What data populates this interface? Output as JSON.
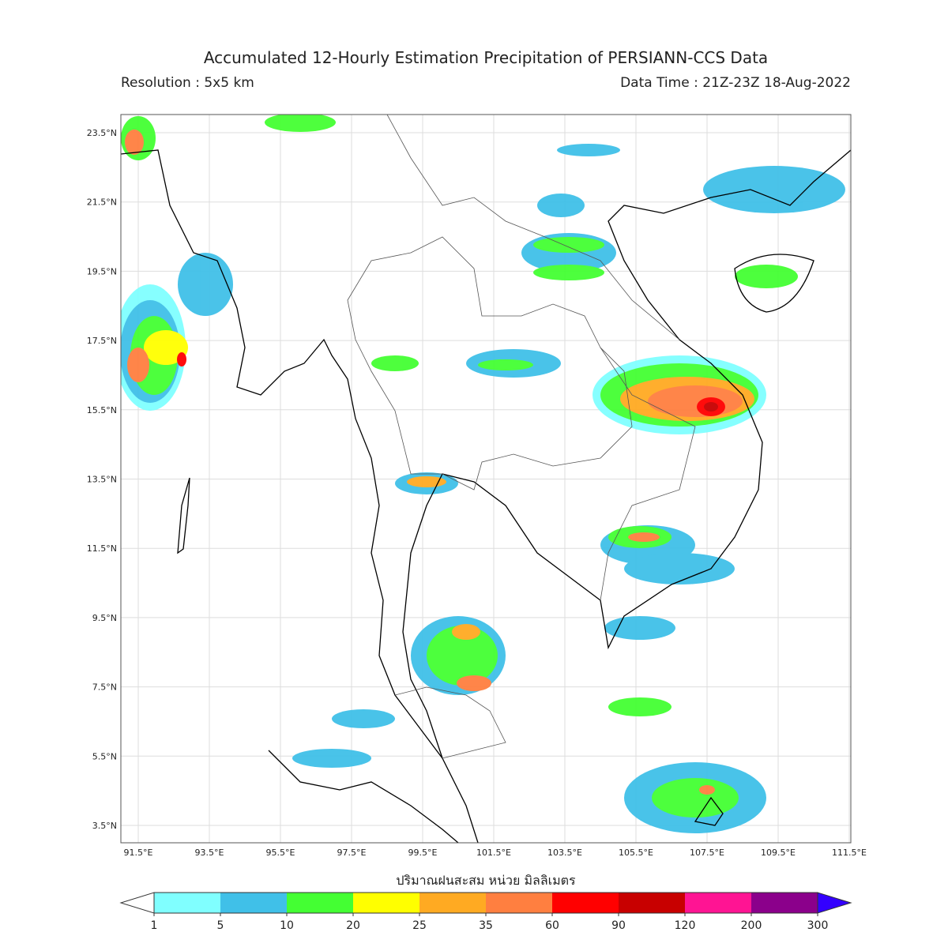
{
  "header": {
    "title": "Accumulated 12-Hourly Estimation Precipitation of PERSIANN-CCS Data",
    "resolution": "Resolution : 5x5 km",
    "data_time": "Data Time : 21Z-23Z 18-Aug-2022"
  },
  "map": {
    "lat_labels": [
      "23.5°N",
      "21.5°N",
      "19.5°N",
      "17.5°N",
      "15.5°N",
      "13.5°N",
      "11.5°N",
      "9.5°N",
      "7.5°N",
      "5.5°N",
      "3.5°N"
    ],
    "lon_labels": [
      "91.5°E",
      "93.5°E",
      "95.5°E",
      "97.5°E",
      "99.5°E",
      "101.5°E",
      "103.5°E",
      "105.5°E",
      "107.5°E",
      "109.5°E",
      "111.5°E"
    ]
  },
  "colorbar": {
    "title": "ปริมาณฝนสะสม หน่วย มิลลิเมตร",
    "levels": [
      1,
      5,
      10,
      20,
      25,
      35,
      60,
      90,
      120,
      200,
      300
    ],
    "under_color": "#ffffff",
    "colors": [
      "#80ffff",
      "#40c0e8",
      "#44ff33",
      "#ffff00",
      "#ffaa22",
      "#ff7f40",
      "#ff0000",
      "#c80000",
      "#ff1493",
      "#8b008b"
    ],
    "over_color": "#3300ff"
  }
}
